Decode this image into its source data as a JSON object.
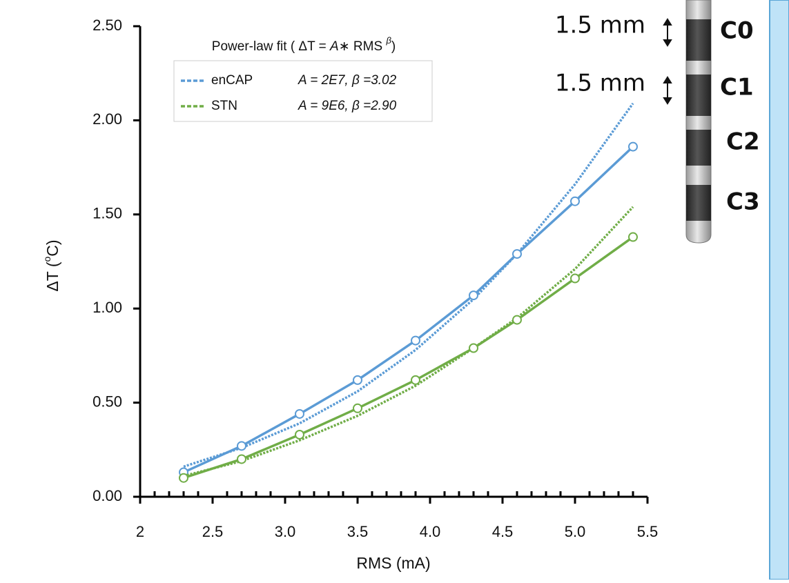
{
  "chart_data": {
    "type": "line",
    "x_label": "RMS (mA)",
    "y_label": [
      "ΔT (",
      "o",
      "C)"
    ],
    "legend_title": [
      "Power-law fit ( ΔT = ",
      "A",
      "∗ RMS ",
      "β",
      ")"
    ],
    "x": [
      2.3,
      2.7,
      3.1,
      3.5,
      3.9,
      4.3,
      4.6,
      5.0,
      5.4
    ],
    "series": [
      {
        "name": "enCAP",
        "color": "#5b9bd5",
        "fit_label": "A = 2E7, β =3.02",
        "values": [
          0.13,
          0.27,
          0.44,
          0.62,
          0.83,
          1.07,
          1.29,
          1.57,
          1.86
        ],
        "fit_values": [
          0.16,
          0.26,
          0.39,
          0.56,
          0.78,
          1.05,
          1.29,
          1.66,
          2.09
        ]
      },
      {
        "name": "STN",
        "color": "#70ad47",
        "fit_label": "A = 9E6, β =2.90",
        "values": [
          0.1,
          0.2,
          0.33,
          0.47,
          0.62,
          0.79,
          0.94,
          1.16,
          1.38
        ],
        "fit_values": [
          0.11,
          0.19,
          0.3,
          0.43,
          0.59,
          0.79,
          0.95,
          1.21,
          1.54
        ]
      }
    ],
    "xlim": [
      2,
      5.5
    ],
    "xticks": [
      2,
      2.5,
      {
        "value": 3,
        "label": "3.0"
      },
      3.5,
      {
        "value": 4,
        "label": "4.0"
      },
      4.5,
      {
        "value": 5,
        "label": "5.0"
      },
      5.5
    ],
    "ylim": [
      0,
      2.5
    ],
    "yticks": [
      {
        "value": 0,
        "label": "0.00"
      },
      {
        "value": 0.5,
        "label": "0.50"
      },
      {
        "value": 1,
        "label": "1.00"
      },
      {
        "value": 1.5,
        "label": "1.50"
      },
      {
        "value": 2,
        "label": "2.00"
      },
      {
        "value": 2.5,
        "label": "2.50"
      }
    ],
    "grid": false
  },
  "electrode": {
    "spacing_labels": [
      "1.5 mm",
      "1.5 mm"
    ],
    "contacts": [
      "C0",
      "C1",
      "C2",
      "C3"
    ]
  }
}
